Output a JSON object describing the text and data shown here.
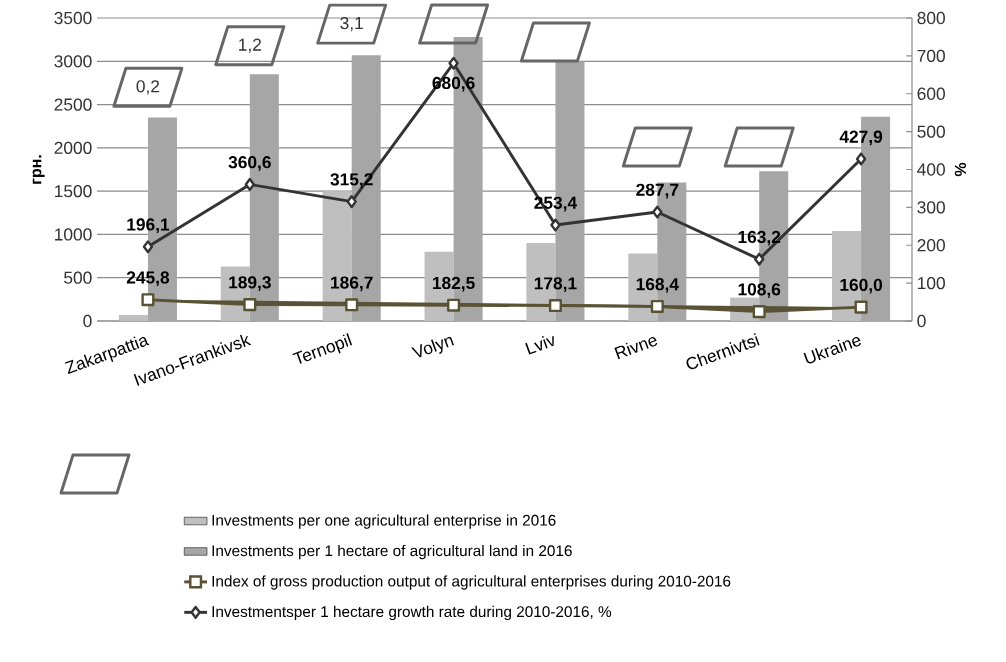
{
  "chart_data": {
    "type": "bar",
    "ylabel": "грн.",
    "y2label": "%",
    "categories": [
      "Zakarpattia",
      "Ivano-Frankivsk",
      "Ternopil",
      "Volyn",
      "Lviv",
      "Rivne",
      "Chernivtsi",
      "Ukraine"
    ],
    "series": [
      {
        "name": "Investments per one agricultural enterprise in 2016",
        "color": "#bfbfbf",
        "values": [
          70,
          630,
          1500,
          800,
          900,
          780,
          270,
          1040
        ]
      },
      {
        "name": "Investments per 1 hectare of agricultural land in 2016",
        "color": "#a6a6a6",
        "values": [
          2350,
          2850,
          3070,
          3280,
          3000,
          1600,
          1730,
          2360
        ]
      },
      {
        "name": "Index of gross production output of agricultural enterprises during 2010-2016",
        "type": "line",
        "color": "#595234",
        "marker": "square",
        "values": [
          245.8,
          189.3,
          186.7,
          182.5,
          178.1,
          168.4,
          108.6,
          160.0
        ],
        "value_labels": [
          "245,8",
          "189,3",
          "186,7",
          "182,5",
          "178,1",
          "168,4",
          "108,6",
          "160,0"
        ]
      },
      {
        "name": "Investmentsper 1 hectare growth rate during 2010-2016, %",
        "type": "line",
        "axis": "y2",
        "color": "#333333",
        "marker": "diamond",
        "values": [
          196.1,
          360.6,
          315.2,
          680.6,
          253.4,
          287.7,
          163.2,
          427.9
        ],
        "value_labels": [
          "196,1",
          "360,6",
          "315,2",
          "680,6",
          "253,4",
          "287,7",
          "163,2",
          "427,9"
        ]
      }
    ],
    "ylim": [
      0,
      3500
    ],
    "yticks": [
      0,
      500,
      1000,
      1500,
      2000,
      2500,
      3000,
      3500
    ],
    "y2lim": [
      0,
      800
    ],
    "y2ticks": [
      0,
      100,
      200,
      300,
      400,
      500,
      600,
      700,
      800
    ],
    "grid": "y",
    "legend": "bottom",
    "annotations": [
      "0,2",
      "1,2",
      "3,1"
    ]
  }
}
